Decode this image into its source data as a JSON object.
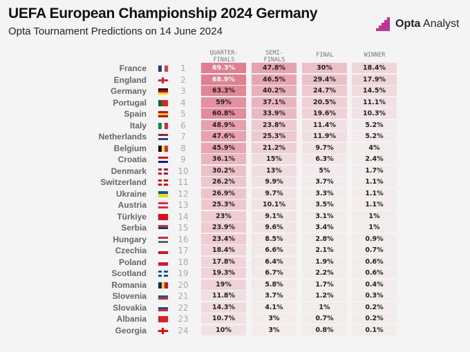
{
  "title": "UEFA European Championship 2024 Germany",
  "subtitle": "Opta Tournament Predictions on 14 June 2024",
  "logo": {
    "brand_bold": "Opta",
    "brand_light": " Analyst"
  },
  "colors": {
    "cell_base": "#dc5c74",
    "text_dark": "#222222",
    "text_light": "#ffffff"
  },
  "chart_data": {
    "type": "table",
    "columns": [
      "QUARTER-\nFINALS",
      "SEMI-\nFINALS",
      "FINAL",
      "WINNER"
    ],
    "rows": [
      {
        "team": "France",
        "rank": "1",
        "flag": [
          "v",
          "#1f3a93",
          "#ffffff",
          "#e63946"
        ],
        "values": [
          "69.3%",
          "47.8%",
          "30%",
          "18.4%"
        ]
      },
      {
        "team": "England",
        "rank": "2",
        "flag": [
          "cross",
          "#ffffff",
          "#d7263d"
        ],
        "values": [
          "68.9%",
          "46.5%",
          "29.4%",
          "17.9%"
        ]
      },
      {
        "team": "Germany",
        "rank": "3",
        "flag": [
          "h",
          "#111111",
          "#dd0000",
          "#ffce00"
        ],
        "values": [
          "63.3%",
          "40.2%",
          "24.7%",
          "14.5%"
        ]
      },
      {
        "team": "Portugal",
        "rank": "4",
        "flag": [
          "v",
          "#046a38",
          "#da291c",
          "#da291c"
        ],
        "values": [
          "59%",
          "37.1%",
          "20.5%",
          "11.1%"
        ]
      },
      {
        "team": "Spain",
        "rank": "5",
        "flag": [
          "h",
          "#c60b1e",
          "#ffc400",
          "#c60b1e"
        ],
        "values": [
          "60.8%",
          "33.9%",
          "19.6%",
          "10.3%"
        ]
      },
      {
        "team": "Italy",
        "rank": "6",
        "flag": [
          "v",
          "#009246",
          "#ffffff",
          "#ce2b37"
        ],
        "values": [
          "48.9%",
          "23.8%",
          "11.4%",
          "5.2%"
        ]
      },
      {
        "team": "Netherlands",
        "rank": "7",
        "flag": [
          "h",
          "#ae1c28",
          "#ffffff",
          "#21468b"
        ],
        "values": [
          "47.6%",
          "25.3%",
          "11.9%",
          "5.2%"
        ]
      },
      {
        "team": "Belgium",
        "rank": "8",
        "flag": [
          "v",
          "#111111",
          "#fae042",
          "#ed2939"
        ],
        "values": [
          "45.9%",
          "21.2%",
          "9.7%",
          "4%"
        ]
      },
      {
        "team": "Croatia",
        "rank": "9",
        "flag": [
          "h",
          "#ff0000",
          "#ffffff",
          "#171796"
        ],
        "values": [
          "36.1%",
          "15%",
          "6.3%",
          "2.4%"
        ]
      },
      {
        "team": "Denmark",
        "rank": "10",
        "flag": [
          "cross",
          "#c8102e",
          "#ffffff"
        ],
        "values": [
          "30.2%",
          "13%",
          "5%",
          "1.7%"
        ]
      },
      {
        "team": "Switzerland",
        "rank": "11",
        "flag": [
          "cross",
          "#ff0000",
          "#ffffff"
        ],
        "values": [
          "26.2%",
          "9.9%",
          "3.7%",
          "1.1%"
        ]
      },
      {
        "team": "Ukraine",
        "rank": "12",
        "flag": [
          "h",
          "#0057b7",
          "#ffd700"
        ],
        "values": [
          "26.9%",
          "9.7%",
          "3.3%",
          "1.1%"
        ]
      },
      {
        "team": "Austria",
        "rank": "13",
        "flag": [
          "h",
          "#ed2939",
          "#ffffff",
          "#ed2939"
        ],
        "values": [
          "25.3%",
          "10.1%",
          "3.5%",
          "1.1%"
        ]
      },
      {
        "team": "Türkiye",
        "rank": "14",
        "flag": [
          "h",
          "#e30a17"
        ],
        "values": [
          "23%",
          "9.1%",
          "3.1%",
          "1%"
        ]
      },
      {
        "team": "Serbia",
        "rank": "15",
        "flag": [
          "h",
          "#c6363c",
          "#0c4076",
          "#ffffff"
        ],
        "values": [
          "23.9%",
          "9.6%",
          "3.4%",
          "1%"
        ]
      },
      {
        "team": "Hungary",
        "rank": "16",
        "flag": [
          "h",
          "#cd2a3e",
          "#ffffff",
          "#436f4d"
        ],
        "values": [
          "23.4%",
          "8.5%",
          "2.8%",
          "0.9%"
        ]
      },
      {
        "team": "Czechia",
        "rank": "17",
        "flag": [
          "h",
          "#ffffff",
          "#d7141a"
        ],
        "values": [
          "18.4%",
          "6.6%",
          "2.1%",
          "0.7%"
        ]
      },
      {
        "team": "Poland",
        "rank": "18",
        "flag": [
          "h",
          "#ffffff",
          "#dc143c"
        ],
        "values": [
          "17.8%",
          "6.4%",
          "1.9%",
          "0.6%"
        ]
      },
      {
        "team": "Scotland",
        "rank": "19",
        "flag": [
          "cross",
          "#005eb8",
          "#ffffff"
        ],
        "values": [
          "19.3%",
          "6.7%",
          "2.2%",
          "0.6%"
        ]
      },
      {
        "team": "Romania",
        "rank": "20",
        "flag": [
          "v",
          "#002b7f",
          "#fcd116",
          "#ce1126"
        ],
        "values": [
          "19%",
          "5.8%",
          "1.7%",
          "0.4%"
        ]
      },
      {
        "team": "Slovenia",
        "rank": "21",
        "flag": [
          "h",
          "#ffffff",
          "#005da4",
          "#ed1c24"
        ],
        "values": [
          "11.8%",
          "3.7%",
          "1.2%",
          "0.3%"
        ]
      },
      {
        "team": "Slovakia",
        "rank": "22",
        "flag": [
          "h",
          "#ffffff",
          "#0b4ea2",
          "#ee1c25"
        ],
        "values": [
          "14.3%",
          "4.1%",
          "1%",
          "0.2%"
        ]
      },
      {
        "team": "Albania",
        "rank": "23",
        "flag": [
          "h",
          "#e41e20"
        ],
        "values": [
          "10.7%",
          "3%",
          "0.7%",
          "0.2%"
        ]
      },
      {
        "team": "Georgia",
        "rank": "24",
        "flag": [
          "cross",
          "#ffffff",
          "#ff0000"
        ],
        "values": [
          "10%",
          "3%",
          "0.8%",
          "0.1%"
        ]
      }
    ]
  }
}
